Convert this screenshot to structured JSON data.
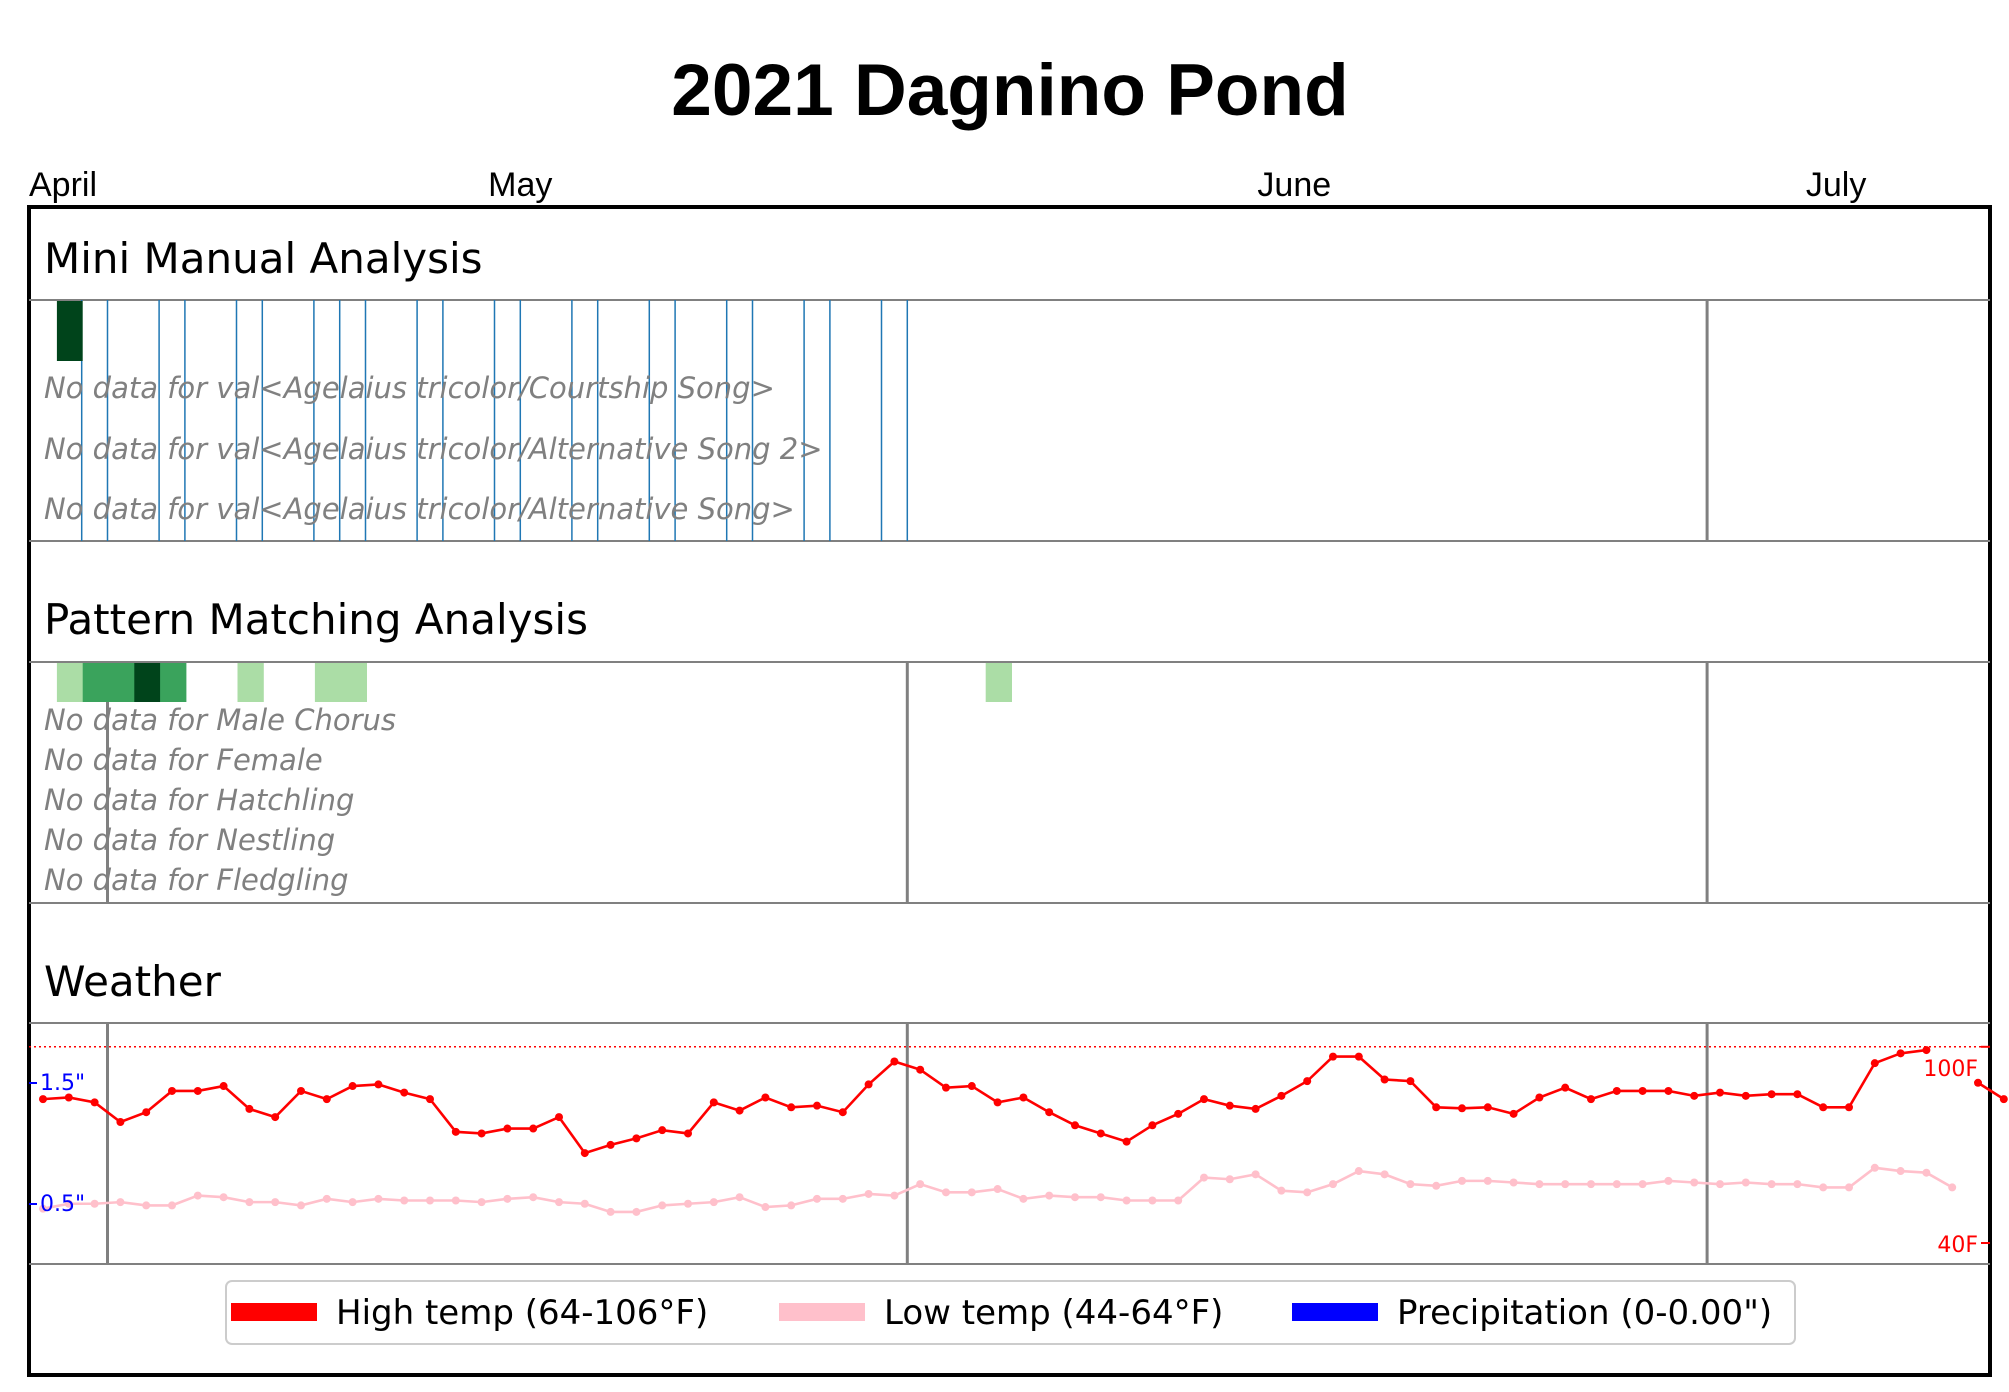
{
  "title": "2021 Dagnino Pond",
  "months": [
    {
      "label": "April",
      "day": 0
    },
    {
      "label": "May",
      "day": 18.5
    },
    {
      "label": "June",
      "day": 48.5
    },
    {
      "label": "July",
      "day": 69.5
    }
  ],
  "sections": {
    "mini_manual": {
      "title": "Mini Manual Analysis",
      "no_data": [
        "No data for val<Agelaius tricolor/Courtship Song>",
        "No data for val<Agelaius tricolor/Alternative Song 2>",
        "No data for val<Agelaius tricolor/Alternative Song>"
      ]
    },
    "pattern": {
      "title": "Pattern Matching Analysis",
      "no_data": [
        "No data for Male Chorus",
        "No data for Female",
        "No data for Hatchling",
        "No data for Nestling",
        "No data for Fledgling"
      ]
    },
    "weather": {
      "title": "Weather",
      "precip_ticks": [
        "1.5\"",
        "0.5\""
      ],
      "temp_ticks": [
        "100F",
        "40F"
      ]
    }
  },
  "legend": [
    {
      "label": "High temp (64-106°F)",
      "color": "#ff0000"
    },
    {
      "label": "Low temp (44-64°F)",
      "color": "#ffc0cb"
    },
    {
      "label": "Precipitation (0-0.00\")",
      "color": "#0000ff"
    }
  ],
  "colors": {
    "high": "#ff0000",
    "low": "#ffc0cb",
    "precip": "#0000ff",
    "manual_line": "#1f77b4",
    "dark_green": "#00441b",
    "mid_green": "#3aa35c",
    "light_green": "#abdda6"
  },
  "chart_data": {
    "type": "line",
    "x_axis": "day index from April 1",
    "manual_cell": {
      "day": 2,
      "intensity": "high"
    },
    "manual_lines_day": [
      2,
      3,
      5,
      6,
      8,
      9,
      11,
      12,
      13,
      15,
      16,
      18,
      19,
      21,
      22,
      24,
      25,
      27,
      28,
      30,
      31,
      33,
      34
    ],
    "pattern_cells": [
      {
        "day": 1,
        "level": "light"
      },
      {
        "day": 2,
        "level": "mid"
      },
      {
        "day": 3,
        "level": "mid"
      },
      {
        "day": 4,
        "level": "dark"
      },
      {
        "day": 5,
        "level": "mid"
      },
      {
        "day": 8,
        "level": "light"
      },
      {
        "day": 11,
        "level": "light"
      },
      {
        "day": 12,
        "level": "light"
      },
      {
        "day": 37,
        "level": "light"
      }
    ],
    "temp_ylim": [
      40,
      106
    ],
    "series": [
      {
        "name": "High temp (64-106°F)",
        "values": [
          84,
          84.5,
          83,
          77,
          80,
          86.5,
          86.5,
          88,
          81,
          78.5,
          86.5,
          84,
          88,
          88.5,
          86,
          84,
          74,
          73.5,
          75,
          75,
          78.5,
          67.5,
          70,
          72,
          74.5,
          73.5,
          83,
          80.5,
          84.5,
          81.5,
          82,
          80,
          88.5,
          95.5,
          93,
          87.5,
          88,
          83,
          84.5,
          80,
          76,
          73.5,
          71,
          76,
          79.5,
          84,
          82,
          81,
          85,
          89.5,
          97,
          97,
          90,
          89.5,
          81.5,
          81.2,
          81.5,
          79.5,
          84.5,
          87.5,
          84,
          86.5,
          86.5,
          86.5,
          85,
          86,
          85,
          85.5,
          85.5,
          81.5,
          81.5,
          95,
          98,
          99,
          null,
          89,
          84
        ]
      },
      {
        "name": "Low temp (44-64°F)",
        "values": [
          50.5,
          52,
          52,
          52.5,
          51.5,
          51.5,
          54.5,
          54,
          52.5,
          52.5,
          51.5,
          53.5,
          52.5,
          53.5,
          53,
          53,
          53,
          52.5,
          53.5,
          54,
          52.5,
          52,
          49.5,
          49.5,
          51.5,
          52,
          52.5,
          54,
          51,
          51.5,
          53.5,
          53.5,
          55,
          54.5,
          58,
          55.5,
          55.5,
          56.5,
          53.5,
          54.5,
          54,
          54,
          53,
          53,
          53,
          60,
          59.5,
          61,
          56,
          55.5,
          58,
          62,
          61,
          58,
          57.5,
          59,
          59,
          58.5,
          58,
          58,
          58,
          58,
          58,
          59,
          58.5,
          58,
          58.5,
          58,
          58,
          57,
          57,
          63,
          62,
          61.5,
          57
        ]
      },
      {
        "name": "Precipitation (0-0.00\")",
        "values": []
      }
    ]
  }
}
